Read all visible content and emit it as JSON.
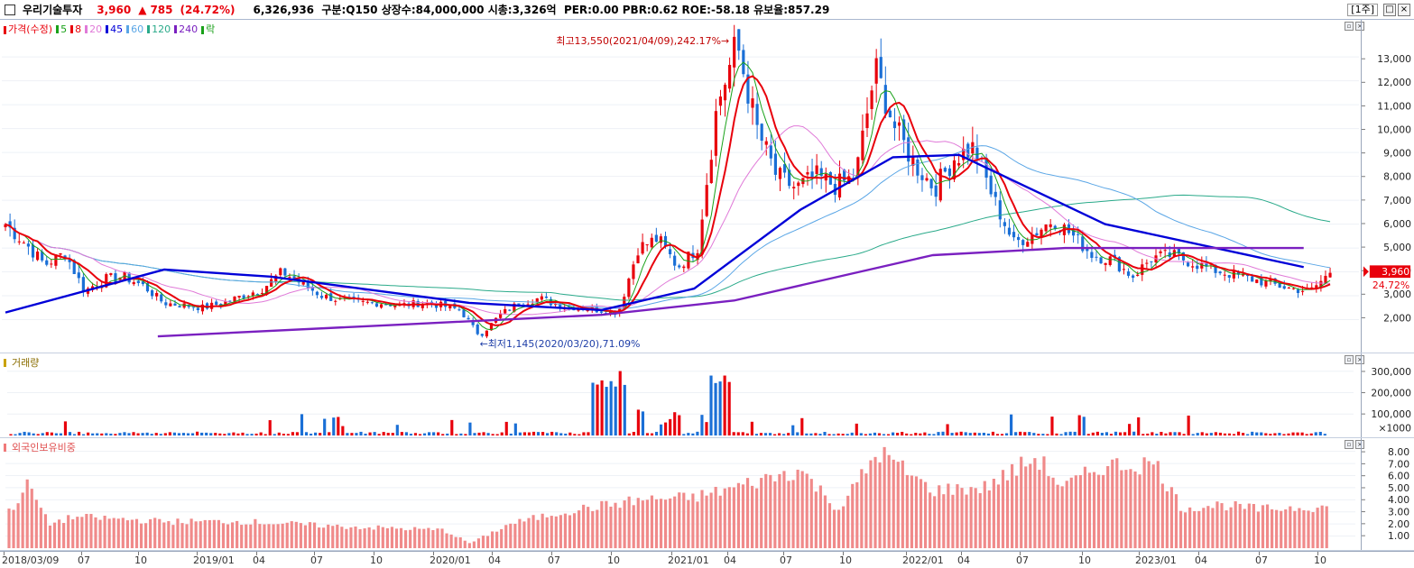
{
  "title_bar": {
    "name": "우리기술투자",
    "price": "3,960",
    "change_arrow": "▲",
    "change": "785",
    "change_pct": "(24.72%)",
    "info": "6,326,936  구분:Q150 상장수:84,000,000 시총:3,326억  PER:0.00 PBR:0.62 ROE:-58.18 유보율:857.29",
    "period": "[1주]",
    "buttons": [
      "□",
      "×"
    ]
  },
  "price_pane": {
    "legend": [
      {
        "label": "가격(수정)",
        "color": "#e8000b"
      },
      {
        "label": "5",
        "color": "#19a119"
      },
      {
        "label": "8",
        "color": "#e8000b"
      },
      {
        "label": "20",
        "color": "#e07ad8"
      },
      {
        "label": "45",
        "color": "#0000d8"
      },
      {
        "label": "60",
        "color": "#5aa6e6"
      },
      {
        "label": "120",
        "color": "#2aaa8a"
      },
      {
        "label": "240",
        "color": "#7a20c0"
      },
      {
        "label": "락",
        "color": "#19a119"
      }
    ],
    "annotation_high": "최고13,550(2021/04/09),242.17%→",
    "annotation_low": "←최저1,145(2020/03/20),71.09%",
    "current_price": "3,960",
    "current_pct": "24.72%",
    "y_labels": [
      "13,000",
      "12,000",
      "11,000",
      "10,000",
      "9,000",
      "8,000",
      "7,000",
      "6,000",
      "5,000",
      "4,000",
      "3,000",
      "2,000"
    ]
  },
  "volume_pane": {
    "legend": "거래량",
    "y_labels": [
      "300,000",
      "200,000",
      "100,000",
      "×1000"
    ]
  },
  "foreign_pane": {
    "legend": "외국인보유비중",
    "y_labels": [
      "8.00",
      "7.00",
      "6.00",
      "5.00",
      "4.00",
      "3.00",
      "2.00",
      "1.00"
    ]
  },
  "x_axis": {
    "labels": [
      "2018/03/09",
      "07",
      "10",
      "2019/01",
      "04",
      "07",
      "10",
      "2020/01",
      "04",
      "07",
      "10",
      "2021/01",
      "04",
      "07",
      "10",
      "2022/01",
      "04",
      "07",
      "10",
      "2023/01",
      "04",
      "07",
      "10"
    ]
  },
  "chart_data": {
    "type": "candlestick",
    "frequency": "weekly",
    "price_anchors": [
      [
        "2018/03/09",
        6000
      ],
      [
        "2018/04",
        5200
      ],
      [
        "2018/05",
        4300
      ],
      [
        "2018/06",
        4800
      ],
      [
        "2018/07",
        3200
      ],
      [
        "2018/08",
        3700
      ],
      [
        "2018/09",
        3800
      ],
      [
        "2018/10",
        3400
      ],
      [
        "2018/11",
        2700
      ],
      [
        "2018/12",
        2600
      ],
      [
        "2019/01",
        2500
      ],
      [
        "2019/02",
        2700
      ],
      [
        "2019/03",
        3000
      ],
      [
        "2019/04",
        3300
      ],
      [
        "2019/05",
        4000
      ],
      [
        "2019/06",
        3500
      ],
      [
        "2019/07",
        3000
      ],
      [
        "2019/08",
        2800
      ],
      [
        "2019/09",
        2700
      ],
      [
        "2019/10",
        2700
      ],
      [
        "2019/11",
        2600
      ],
      [
        "2019/12",
        2700
      ],
      [
        "2020/01",
        2600
      ],
      [
        "2020/02",
        2400
      ],
      [
        "2020/03",
        1300
      ],
      [
        "2020/04",
        2200
      ],
      [
        "2020/05",
        2700
      ],
      [
        "2020/06",
        2900
      ],
      [
        "2020/07",
        2600
      ],
      [
        "2020/08",
        2500
      ],
      [
        "2020/09",
        2400
      ],
      [
        "2020/10",
        2300
      ],
      [
        "2020/11",
        5000
      ],
      [
        "2020/12",
        5400
      ],
      [
        "2021/01",
        4200
      ],
      [
        "2021/02",
        5000
      ],
      [
        "2021/03",
        11000
      ],
      [
        "2021/04",
        13550
      ],
      [
        "2021/05",
        10000
      ],
      [
        "2021/06",
        8000
      ],
      [
        "2021/07",
        7500
      ],
      [
        "2021/08",
        8000
      ],
      [
        "2021/09",
        7600
      ],
      [
        "2021/10",
        8000
      ],
      [
        "2021/11",
        12500
      ],
      [
        "2021/12",
        10000
      ],
      [
        "2022/01",
        8500
      ],
      [
        "2022/02",
        7500
      ],
      [
        "2022/03",
        8800
      ],
      [
        "2022/04",
        9200
      ],
      [
        "2022/05",
        7000
      ],
      [
        "2022/06",
        5200
      ],
      [
        "2022/07",
        5600
      ],
      [
        "2022/08",
        6200
      ],
      [
        "2022/09",
        5500
      ],
      [
        "2022/10",
        4700
      ],
      [
        "2022/11",
        4500
      ],
      [
        "2022/12",
        3800
      ],
      [
        "2023/01",
        4600
      ],
      [
        "2023/02",
        4700
      ],
      [
        "2023/03",
        4400
      ],
      [
        "2023/04",
        4100
      ],
      [
        "2023/05",
        3900
      ],
      [
        "2023/06",
        3700
      ],
      [
        "2023/07",
        3500
      ],
      [
        "2023/08",
        3300
      ],
      [
        "2023/09",
        3200
      ],
      [
        "2023/10",
        3960
      ]
    ],
    "ma_lines": [
      {
        "name": "45",
        "color": "#0000d8",
        "values": [
          [
            0,
            2300
          ],
          [
            0.12,
            4100
          ],
          [
            0.2,
            3800
          ],
          [
            0.35,
            2700
          ],
          [
            0.45,
            2400
          ],
          [
            0.52,
            3300
          ],
          [
            0.6,
            6600
          ],
          [
            0.67,
            8800
          ],
          [
            0.72,
            8900
          ],
          [
            0.83,
            6000
          ],
          [
            0.98,
            4200
          ]
        ]
      },
      {
        "name": "240",
        "color": "#7a20c0",
        "values": [
          [
            0.115,
            1300
          ],
          [
            0.3,
            1800
          ],
          [
            0.45,
            2200
          ],
          [
            0.55,
            2800
          ],
          [
            0.7,
            4700
          ],
          [
            0.8,
            5000
          ],
          [
            0.98,
            5000
          ]
        ]
      }
    ],
    "volume": {
      "y_max": 300000,
      "unit": "×1000",
      "ymax_display": 350000
    },
    "foreign_ratio": {
      "ylim": [
        0,
        8.5
      ]
    },
    "high": {
      "value": 13550,
      "date": "2021/04/09",
      "pct": 242.17
    },
    "low": {
      "value": 1145,
      "date": "2020/03/20",
      "pct": 71.09
    },
    "ylim": [
      1000,
      13800
    ]
  }
}
